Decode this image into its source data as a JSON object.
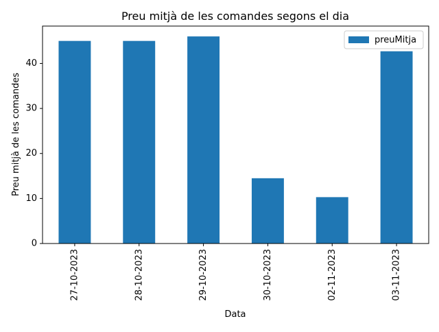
{
  "chart_data": {
    "type": "bar",
    "title": "Preu mitjà de les comandes segons el dia",
    "xlabel": "Data",
    "ylabel": "Preu mitjà de les comandes",
    "categories": [
      "27-10-2023",
      "28-10-2023",
      "29-10-2023",
      "30-10-2023",
      "02-11-2023",
      "03-11-2023"
    ],
    "series": [
      {
        "name": "preuMitja",
        "values": [
          45.0,
          45.0,
          46.0,
          14.5,
          10.3,
          42.7
        ],
        "color": "#1f77b4"
      }
    ],
    "ylim": [
      0,
      48.3
    ],
    "yticks": [
      0,
      10,
      20,
      30,
      40
    ],
    "grid": false,
    "legend_position": "upper right"
  }
}
